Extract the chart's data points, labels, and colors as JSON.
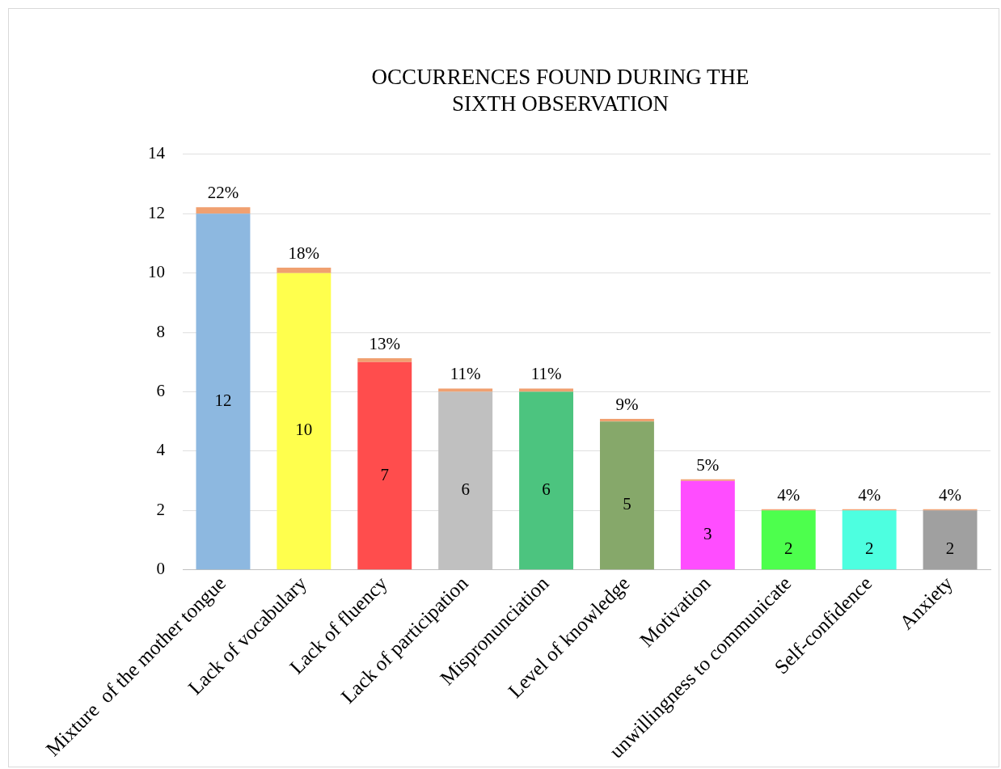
{
  "chart_data": {
    "type": "bar",
    "title": "OCCURRENCES FOUND DURING THE\nSIXTH OBSERVATION",
    "categories": [
      "Mixture  of the mother tongue",
      "Lack of vocabulary",
      "Lack of fluency",
      "Lack of participation",
      "Mispronunciation",
      "Level of knowledge",
      "Motivation",
      "unwillingness to communicate",
      "Self-confidence",
      "Anxiety"
    ],
    "stacked": true,
    "series": [
      {
        "colors": [
          "#8db8e0",
          "#ffff4d",
          "#ff4d4d",
          "#c0c0c0",
          "#4cc47f",
          "#86a86a",
          "#ff4dff",
          "#4dff4d",
          "#4dffe0",
          "#a0a0a0"
        ],
        "values": [
          12,
          10,
          7,
          6,
          6,
          5,
          3,
          2,
          2,
          2
        ],
        "value_labels": [
          "12",
          "10",
          "7",
          "6",
          "6",
          "5",
          "3",
          "2",
          "2",
          "2"
        ]
      },
      {
        "color": "#f0a070",
        "values": [
          0.22,
          0.18,
          0.13,
          0.11,
          0.11,
          0.09,
          0.05,
          0.04,
          0.04,
          0.04
        ],
        "value_labels": [
          "22%",
          "18%",
          "13%",
          "11%",
          "11%",
          "9%",
          "5%",
          "4%",
          "4%",
          "4%"
        ]
      }
    ],
    "ylim": [
      0,
      14
    ],
    "yticks": [
      0,
      2,
      4,
      6,
      8,
      10,
      12,
      14
    ],
    "grid": "y",
    "legend": false
  }
}
